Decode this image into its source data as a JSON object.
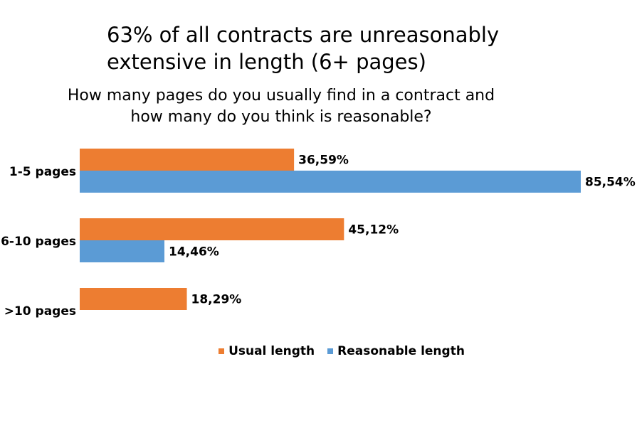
{
  "title": "63% of all contracts are unreasonably\nextensive in length (6+ pages)",
  "chart_data": {
    "type": "bar",
    "orientation": "horizontal",
    "subtitle": "How many pages do you usually find in a contract and\nhow many do you think is reasonable?",
    "categories": [
      "1-5 pages",
      "6-10 pages",
      ">10 pages"
    ],
    "series": [
      {
        "name": "Usual length",
        "color": "#ED7D31",
        "values": [
          36.59,
          45.12,
          18.29
        ],
        "labels": [
          "36,59%",
          "45,12%",
          "18,29%"
        ]
      },
      {
        "name": "Reasonable length",
        "color": "#5B9BD5",
        "values": [
          85.54,
          14.46,
          0
        ],
        "labels": [
          "85,54%",
          "14,46%",
          ""
        ]
      }
    ],
    "xlim": [
      0,
      100
    ],
    "grid": false,
    "legend_position": "bottom"
  }
}
